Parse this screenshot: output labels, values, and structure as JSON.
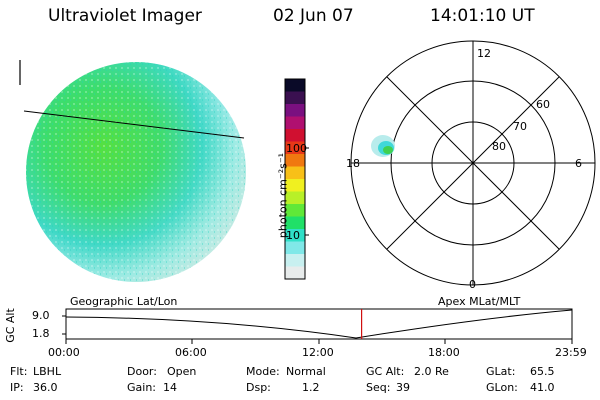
{
  "header": {
    "instrument": "Ultraviolet Imager",
    "date": "02 Jun 07",
    "time": "14:01:10 UT"
  },
  "colorbar": {
    "unit_label": "photon cm⁻²s⁻¹",
    "ticks": [
      "100",
      "10"
    ],
    "colors": [
      "#0a0a28",
      "#3a1050",
      "#7a1080",
      "#b01070",
      "#d01030",
      "#e83818",
      "#f07810",
      "#f8c018",
      "#f0f020",
      "#b8f028",
      "#60e838",
      "#20e068",
      "#30e0c8",
      "#80e8e8",
      "#c8f0f0",
      "#e8ecec"
    ]
  },
  "polar": {
    "mlt_labels": [
      "12",
      "18",
      "6",
      "0"
    ],
    "lat_labels": [
      "60",
      "70",
      "80"
    ]
  },
  "timeline": {
    "left_caption": "Geographic Lat/Lon",
    "right_caption": "Apex MLat/MLT",
    "y_axis_title": "GC Alt",
    "y_ticks": [
      "9.0",
      "1.8"
    ],
    "x_ticks": [
      "00:00",
      "06:00",
      "12:00",
      "18:00",
      "23:59"
    ],
    "current_time_fraction": 0.5842
  },
  "status": {
    "row1": [
      {
        "key": "Flt:",
        "value": "LBHL"
      },
      {
        "key": "Door:",
        "value": "Open"
      },
      {
        "key": "Mode:",
        "value": "Normal"
      },
      {
        "key": "GC Alt:",
        "value": "2.0 Re"
      },
      {
        "key": "GLat:",
        "value": "65.5"
      }
    ],
    "row2": [
      {
        "key": "IP:",
        "value": "36.0"
      },
      {
        "key": "Gain:",
        "value": "14"
      },
      {
        "key": "Dsp:",
        "value": "1.2"
      },
      {
        "key": "Seq:",
        "value": "39"
      },
      {
        "key": "GLon:",
        "value": "41.0"
      }
    ]
  }
}
